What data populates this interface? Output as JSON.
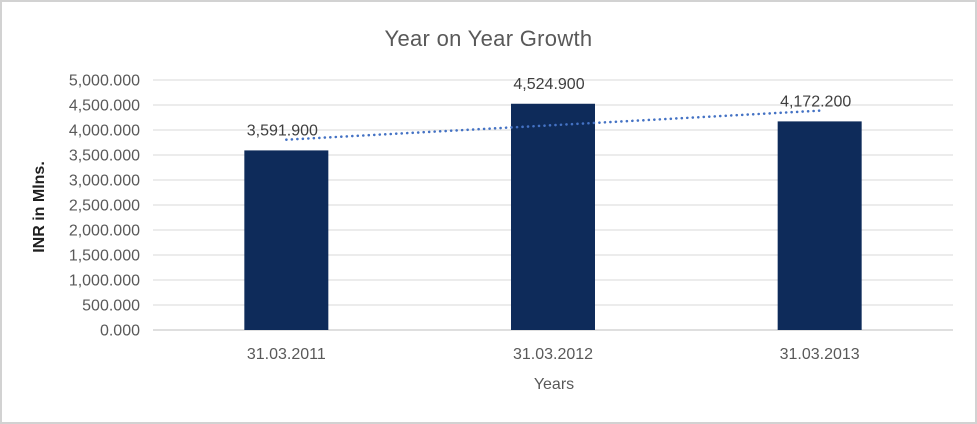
{
  "chart_data": {
    "type": "bar",
    "title": "Year on Year Growth",
    "xlabel": "Years",
    "ylabel": "INR in Mlns.",
    "categories": [
      "31.03.2011",
      "31.03.2012",
      "31.03.2013"
    ],
    "values": [
      3591.9,
      4524.9,
      4172.2
    ],
    "value_labels": [
      "3,591.900",
      "4,524.900",
      "4,172.200"
    ],
    "ylim": [
      0,
      5000
    ],
    "ytick_step": 500,
    "ytick_labels": [
      "0.000",
      "500.000",
      "1,000.000",
      "1,500.000",
      "2,000.000",
      "2,500.000",
      "3,000.000",
      "3,500.000",
      "4,000.000",
      "4,500.000",
      "5,000.000"
    ],
    "grid": true,
    "legend": false,
    "trendline": {
      "type": "linear",
      "style": "dotted"
    },
    "colors": {
      "bar": "#0E2B5A",
      "trendline": "#4472C4",
      "gridline": "#D9D9D9",
      "axis_line": "#BFBFBF",
      "title_text": "#595959",
      "tick_text": "#595959",
      "data_label_text": "#3F3F3F",
      "axis_title_text": "#1F1F1F"
    }
  }
}
